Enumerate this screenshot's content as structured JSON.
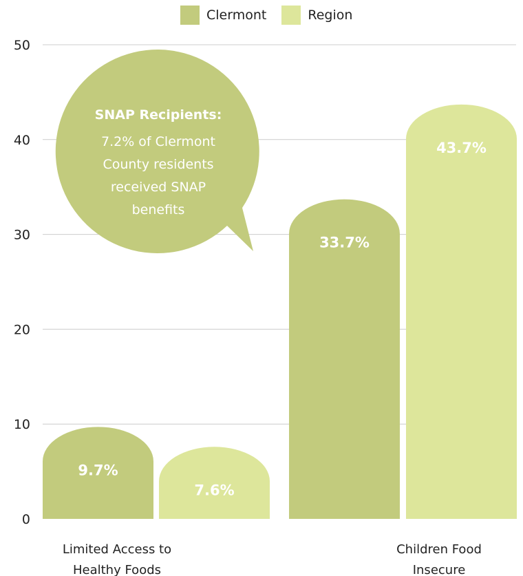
{
  "chart_data": {
    "type": "bar",
    "categories": [
      "Limited Access to Healthy Foods",
      "Children Food Insecure"
    ],
    "category_label_lines": [
      [
        "Limited Access to",
        "Healthy Foods"
      ],
      [
        "Children Food",
        "Insecure"
      ]
    ],
    "series": [
      {
        "name": "Clermont",
        "values": [
          9.7,
          33.7
        ],
        "labels": [
          "9.7%",
          "33.7%"
        ],
        "color": "#c2cb7d"
      },
      {
        "name": "Region",
        "values": [
          7.6,
          43.7
        ],
        "labels": [
          "7.6%",
          "43.7%"
        ],
        "color": "#dde69b"
      }
    ],
    "ylim": [
      0,
      50
    ],
    "yticks": [
      0,
      10,
      20,
      30,
      40,
      50
    ],
    "grid": true,
    "legend_position": "top-center",
    "annotation": {
      "title": "SNAP Recipients:",
      "lines": [
        "7.2% of Clermont",
        "County residents",
        "received SNAP",
        "benefits"
      ],
      "color": "#c2cb7d"
    }
  }
}
